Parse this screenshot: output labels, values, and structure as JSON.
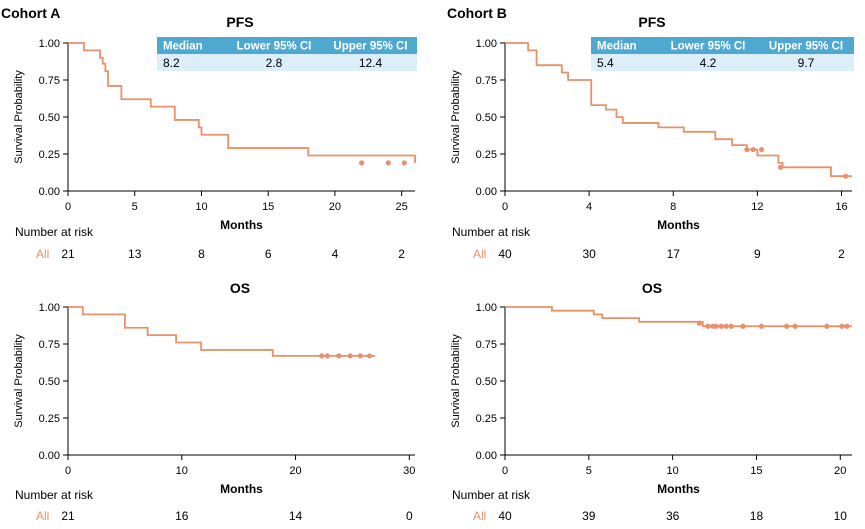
{
  "colors": {
    "curve": "#E8916A",
    "table_header": "#4FA8D0",
    "table_row": "#DCEFF8",
    "axis": "#000000"
  },
  "figure": {
    "cohorts": [
      {
        "label": "Cohort A"
      },
      {
        "label": "Cohort B"
      }
    ],
    "risk_header": "Number at risk",
    "risk_group": "All"
  },
  "chart_data": [
    {
      "type": "line",
      "step": true,
      "cohort": "Cohort A",
      "title": "PFS",
      "xlabel": "Months",
      "ylabel": "Survival Probability",
      "xlim": [
        0,
        26
      ],
      "ylim": [
        0,
        1
      ],
      "xticks": [
        "0",
        "5",
        "10",
        "15",
        "20",
        "25"
      ],
      "xtick_values": [
        0,
        5,
        10,
        15,
        20,
        25
      ],
      "yticks": [
        "0.00",
        "0.25",
        "0.50",
        "0.75",
        "1.00"
      ],
      "series": [
        {
          "x": [
            0,
            1.2,
            2.4,
            2.6,
            2.8,
            3.0,
            4.0,
            6.2,
            8.0,
            9.8,
            10.0,
            12.0,
            18.0,
            26.0
          ],
          "y": [
            1.0,
            0.95,
            0.9,
            0.86,
            0.81,
            0.71,
            0.62,
            0.57,
            0.48,
            0.43,
            0.38,
            0.29,
            0.24,
            0.19
          ],
          "censor_x": [
            22,
            24,
            25.2
          ],
          "censor_y": [
            0.19,
            0.19,
            0.19
          ]
        }
      ],
      "table": {
        "headers": [
          "Median",
          "Lower 95% CI",
          "Upper 95% CI"
        ],
        "values": [
          "8.2",
          "2.8",
          "12.4"
        ]
      },
      "risk": {
        "x": [
          0,
          5,
          10,
          15,
          20,
          25
        ],
        "counts": [
          "21",
          "13",
          "8",
          "6",
          "4",
          "2"
        ]
      }
    },
    {
      "type": "line",
      "step": true,
      "cohort": "Cohort B",
      "title": "PFS",
      "xlabel": "Months",
      "ylabel": "Survival Probability",
      "xlim": [
        0,
        16.5
      ],
      "ylim": [
        0,
        1
      ],
      "xticks": [
        "0",
        "4",
        "8",
        "12",
        "16"
      ],
      "xtick_values": [
        0,
        4,
        8,
        12,
        16
      ],
      "yticks": [
        "0.00",
        "0.25",
        "0.50",
        "0.75",
        "1.00"
      ],
      "series": [
        {
          "x": [
            0,
            1.1,
            1.5,
            2.7,
            3.0,
            4.1,
            4.8,
            5.3,
            5.6,
            7.3,
            8.5,
            10.0,
            10.8,
            11.5,
            12.0,
            13.0,
            13.2,
            15.5,
            16.5
          ],
          "y": [
            1.0,
            0.95,
            0.85,
            0.8,
            0.75,
            0.58,
            0.55,
            0.5,
            0.46,
            0.43,
            0.4,
            0.35,
            0.31,
            0.28,
            0.24,
            0.19,
            0.16,
            0.1,
            0.1
          ],
          "censor_x": [
            11.5,
            11.8,
            12.2,
            13.1,
            16.2
          ],
          "censor_y": [
            0.28,
            0.28,
            0.28,
            0.16,
            0.1
          ]
        }
      ],
      "table": {
        "headers": [
          "Median",
          "Lower 95% CI",
          "Upper 95% CI"
        ],
        "values": [
          "5.4",
          "4.2",
          "9.7"
        ]
      },
      "risk": {
        "x": [
          0,
          4,
          8,
          12,
          16
        ],
        "counts": [
          "40",
          "30",
          "17",
          "9",
          "2"
        ]
      }
    },
    {
      "type": "line",
      "step": true,
      "cohort": "Cohort A",
      "title": "OS",
      "xlabel": "Months",
      "ylabel": "Survival Probability",
      "xlim": [
        0,
        30.5
      ],
      "ylim": [
        0,
        1
      ],
      "xticks": [
        "0",
        "10",
        "20",
        "30"
      ],
      "xtick_values": [
        0,
        10,
        20,
        30
      ],
      "yticks": [
        "0.00",
        "0.25",
        "0.50",
        "0.75",
        "1.00"
      ],
      "series": [
        {
          "x": [
            0,
            1.3,
            5.0,
            7.0,
            9.5,
            11.7,
            18.0,
            27.0
          ],
          "y": [
            1.0,
            0.95,
            0.86,
            0.81,
            0.76,
            0.71,
            0.67,
            0.67
          ],
          "censor_x": [
            22.3,
            22.8,
            23.8,
            24.8,
            25.7,
            26.5
          ],
          "censor_y": [
            0.67,
            0.67,
            0.67,
            0.67,
            0.67,
            0.67
          ]
        }
      ],
      "table": null,
      "risk": {
        "x": [
          0,
          10,
          20,
          30
        ],
        "counts": [
          "21",
          "16",
          "14",
          "0"
        ]
      }
    },
    {
      "type": "line",
      "step": true,
      "cohort": "Cohort B",
      "title": "OS",
      "xlabel": "Months",
      "ylabel": "Survival Probability",
      "xlim": [
        0,
        20.7
      ],
      "ylim": [
        0,
        1
      ],
      "xticks": [
        "0",
        "5",
        "10",
        "15",
        "20"
      ],
      "xtick_values": [
        0,
        5,
        10,
        15,
        20
      ],
      "yticks": [
        "0.00",
        "0.25",
        "0.50",
        "0.75",
        "1.00"
      ],
      "series": [
        {
          "x": [
            0,
            2.8,
            5.3,
            5.8,
            8.0,
            11.8,
            20.7
          ],
          "y": [
            1.0,
            0.975,
            0.95,
            0.925,
            0.9,
            0.87,
            0.87
          ],
          "censor_x": [
            11.6,
            12.1,
            12.4,
            12.6,
            12.9,
            13.2,
            13.5,
            14.2,
            15.3,
            16.8,
            17.3,
            19.2,
            20.1,
            20.4
          ],
          "censor_y": [
            0.89,
            0.87,
            0.87,
            0.87,
            0.87,
            0.87,
            0.87,
            0.87,
            0.87,
            0.87,
            0.87,
            0.87,
            0.87,
            0.87
          ]
        }
      ],
      "table": null,
      "risk": {
        "x": [
          0,
          5,
          10,
          15,
          20
        ],
        "counts": [
          "40",
          "39",
          "36",
          "18",
          "10"
        ]
      }
    }
  ]
}
